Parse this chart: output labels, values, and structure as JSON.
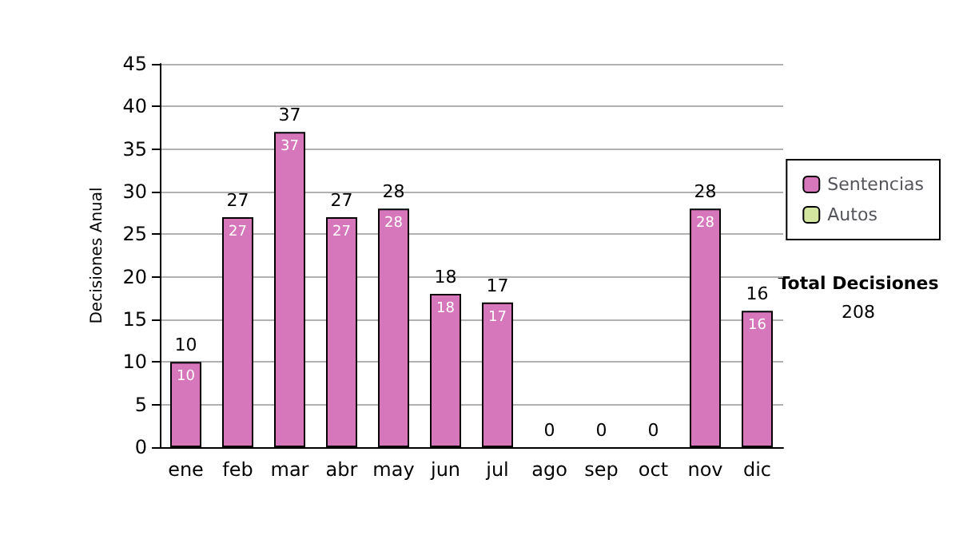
{
  "chart_data": {
    "type": "bar",
    "ylabel": "Decisiones Anual",
    "categories": [
      "ene",
      "feb",
      "mar",
      "abr",
      "may",
      "jun",
      "jul",
      "ago",
      "sep",
      "oct",
      "nov",
      "dic"
    ],
    "stacked": true,
    "series": [
      {
        "name": "Sentencias",
        "color": "#d676bb",
        "values": [
          10,
          27,
          37,
          27,
          28,
          18,
          17,
          0,
          0,
          0,
          28,
          16
        ],
        "value_labels": [
          "10",
          "27",
          "37",
          "27",
          "28",
          "18",
          "17",
          null,
          null,
          null,
          "28",
          "16"
        ]
      },
      {
        "name": "Autos",
        "color": "#d2e6a0",
        "values": [
          0,
          0,
          0,
          0,
          0,
          0,
          0,
          0,
          0,
          0,
          0,
          0
        ]
      }
    ],
    "totals": [
      "10",
      "27",
      "37",
      "27",
      "28",
      "18",
      "17",
      "0",
      "0",
      "0",
      "28",
      "16"
    ],
    "ylim": [
      0,
      45
    ],
    "yticks": [
      0,
      5,
      10,
      15,
      20,
      25,
      30,
      35,
      40,
      45
    ],
    "grid": "y",
    "legend": "right",
    "annotations": [
      "Total Decisiones",
      "208"
    ]
  }
}
